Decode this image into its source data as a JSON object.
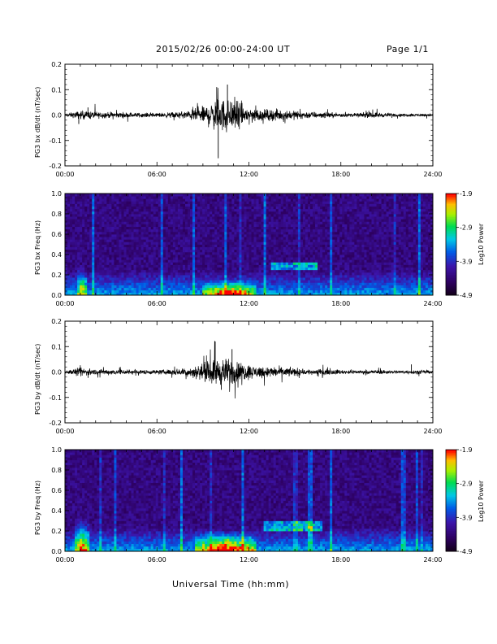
{
  "header": {
    "title": "2015/02/26  00:00-24:00 UT",
    "page": "Page 1/1"
  },
  "xlabel": "Universal Time (hh:mm)",
  "chart_data": [
    {
      "type": "line",
      "ylabel": "PG3 bx dB/dt (nT/sec)",
      "ylim": [
        -0.2,
        0.2
      ],
      "yticks": [
        "0.2",
        "0.1",
        "0.0",
        "-0.1",
        "-0.2"
      ],
      "xticks": [
        "00:00",
        "06:00",
        "12:00",
        "18:00",
        "24:00"
      ],
      "xlim_hours": [
        0,
        24
      ],
      "series": [
        {
          "color": "#000000"
        }
      ],
      "envelope_hours": [
        0,
        1,
        2,
        3,
        4,
        5,
        6,
        7,
        8,
        9,
        10,
        11,
        12,
        13,
        14,
        15,
        16,
        17,
        18,
        19,
        20,
        21,
        22,
        23,
        24
      ],
      "envelope_amplitude": [
        0.01,
        0.03,
        0.025,
        0.02,
        0.02,
        0.015,
        0.015,
        0.02,
        0.03,
        0.06,
        0.12,
        0.11,
        0.06,
        0.04,
        0.04,
        0.03,
        0.025,
        0.02,
        0.015,
        0.012,
        0.02,
        0.015,
        0.01,
        0.01,
        0.01
      ],
      "spikes": [
        {
          "x": 10.0,
          "y": -0.17
        },
        {
          "x": 9.9,
          "y": 0.11
        },
        {
          "x": 10.6,
          "y": 0.12
        },
        {
          "x": 0.9,
          "y": -0.035
        },
        {
          "x": 1.5,
          "y": 0.03
        }
      ]
    },
    {
      "type": "heatmap",
      "ylabel": "PG3 bx Freq (Hz)",
      "ylim": [
        0.0,
        1.0
      ],
      "yticks": [
        "1.0",
        "0.8",
        "0.6",
        "0.4",
        "0.2",
        "0.0"
      ],
      "xticks": [
        "00:00",
        "06:00",
        "12:00",
        "18:00",
        "24:00"
      ],
      "colorbar": {
        "label": "Log10 Power",
        "min": -4.9,
        "max": -1.9,
        "ticks": [
          "-1.9",
          "-2.9",
          "-3.9",
          "-4.9"
        ]
      },
      "features": [
        {
          "kind": "lowfreq-band",
          "start_h": 9.0,
          "end_h": 12.5,
          "top_hz": 0.15,
          "level": 0.75
        },
        {
          "kind": "lowfreq-band",
          "start_h": 0.8,
          "end_h": 1.4,
          "top_hz": 0.3,
          "level": 0.55
        },
        {
          "kind": "emission",
          "start_h": 13.5,
          "end_h": 16.5,
          "center_hz": 0.28,
          "width_hz": 0.08,
          "level": 0.4
        }
      ]
    },
    {
      "type": "line",
      "ylabel": "PG3 by dB/dt (nT/sec)",
      "ylim": [
        -0.2,
        0.2
      ],
      "yticks": [
        "0.2",
        "0.1",
        "0.0",
        "-0.1",
        "-0.2"
      ],
      "xticks": [
        "00:00",
        "06:00",
        "12:00",
        "18:00",
        "24:00"
      ],
      "xlim_hours": [
        0,
        24
      ],
      "series": [
        {
          "color": "#000000"
        }
      ],
      "envelope_hours": [
        0,
        1,
        2,
        3,
        4,
        5,
        6,
        7,
        8,
        9,
        10,
        11,
        12,
        13,
        14,
        15,
        16,
        17,
        18,
        19,
        20,
        21,
        22,
        23,
        24
      ],
      "envelope_amplitude": [
        0.01,
        0.03,
        0.02,
        0.02,
        0.02,
        0.015,
        0.015,
        0.02,
        0.03,
        0.06,
        0.1,
        0.09,
        0.05,
        0.04,
        0.035,
        0.03,
        0.02,
        0.02,
        0.015,
        0.012,
        0.015,
        0.015,
        0.01,
        0.015,
        0.01
      ],
      "spikes": [
        {
          "x": 9.8,
          "y": 0.12
        },
        {
          "x": 10.2,
          "y": -0.07
        },
        {
          "x": 10.9,
          "y": 0.09
        },
        {
          "x": 22.6,
          "y": 0.03
        }
      ]
    },
    {
      "type": "heatmap",
      "ylabel": "PG3 by Freq (Hz)",
      "ylim": [
        0.0,
        1.0
      ],
      "yticks": [
        "1.0",
        "0.8",
        "0.6",
        "0.4",
        "0.2",
        "0.0"
      ],
      "xticks": [
        "00:00",
        "06:00",
        "12:00",
        "18:00",
        "24:00"
      ],
      "colorbar": {
        "label": "Log10 Power",
        "min": -4.9,
        "max": -1.9,
        "ticks": [
          "-1.9",
          "-2.9",
          "-3.9",
          "-4.9"
        ]
      },
      "features": [
        {
          "kind": "lowfreq-band",
          "start_h": 8.5,
          "end_h": 12.5,
          "top_hz": 0.2,
          "level": 0.75
        },
        {
          "kind": "lowfreq-band",
          "start_h": 0.6,
          "end_h": 1.6,
          "top_hz": 0.35,
          "level": 0.65
        },
        {
          "kind": "emission",
          "start_h": 13.0,
          "end_h": 16.8,
          "center_hz": 0.24,
          "width_hz": 0.1,
          "level": 0.4
        }
      ]
    }
  ]
}
